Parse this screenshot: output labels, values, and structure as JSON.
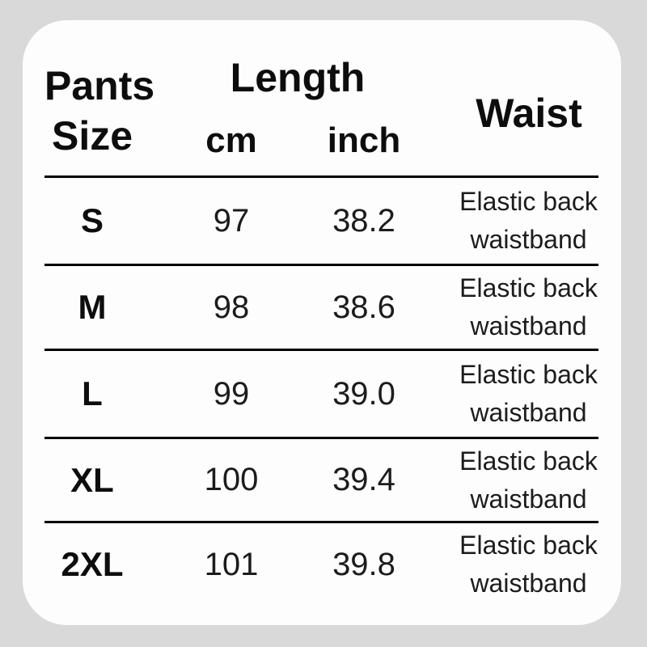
{
  "colors": {
    "background": "#d9d9d9",
    "card": "#fdfdfd",
    "separator_line": "#000000",
    "heading_text": "#0d0d0d",
    "body_text": "#1c1c1c"
  },
  "chart_data": {
    "type": "table",
    "header": {
      "size_line1": "Pants",
      "size_line2": "Size",
      "length_group": "Length",
      "length_unit_cm": "cm",
      "length_unit_inch": "inch",
      "waist": "Waist"
    },
    "rows": [
      {
        "size": "S",
        "length_cm": "97",
        "length_inch": "38.2",
        "waist_line1": "Elastic back",
        "waist_line2": "waistband"
      },
      {
        "size": "M",
        "length_cm": "98",
        "length_inch": "38.6",
        "waist_line1": "Elastic back",
        "waist_line2": "waistband"
      },
      {
        "size": "L",
        "length_cm": "99",
        "length_inch": "39.0",
        "waist_line1": "Elastic back",
        "waist_line2": "waistband"
      },
      {
        "size": "XL",
        "length_cm": "100",
        "length_inch": "39.4",
        "waist_line1": "Elastic back",
        "waist_line2": "waistband"
      },
      {
        "size": "2XL",
        "length_cm": "101",
        "length_inch": "39.8",
        "waist_line1": "Elastic back",
        "waist_line2": "waistband"
      }
    ]
  }
}
